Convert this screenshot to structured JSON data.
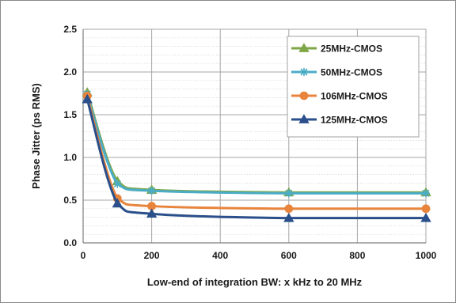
{
  "chart_data": {
    "type": "line",
    "title": "",
    "xlabel": "Low-end of integration BW: x kHz to 20 MHz",
    "ylabel": "Phase Jitter (ps RMS)",
    "xlim": [
      0,
      1000
    ],
    "ylim": [
      0.0,
      2.5
    ],
    "x_ticks": [
      0,
      200,
      400,
      600,
      800,
      1000
    ],
    "y_ticks": [
      0.0,
      0.5,
      1.0,
      1.5,
      2.0,
      2.5
    ],
    "x_tick_labels": [
      "0",
      "200",
      "400",
      "600",
      "800",
      "1000"
    ],
    "y_tick_labels": [
      "0.0",
      "0.5",
      "1.0",
      "1.5",
      "2.0",
      "2.5"
    ],
    "grid": {
      "major_horizontal": true,
      "minor_horizontal": true,
      "vertical": true
    },
    "legend_position": "top-right",
    "x": [
      12,
      100,
      200,
      600,
      1000
    ],
    "series": [
      {
        "name": "25MHz-CMOS",
        "color": "#7fa646",
        "marker": "triangle",
        "values": [
          1.76,
          0.72,
          0.62,
          0.59,
          0.59
        ]
      },
      {
        "name": "50MHz-CMOS",
        "color": "#4bacc6",
        "marker": "star",
        "values": [
          1.74,
          0.69,
          0.61,
          0.58,
          0.58
        ]
      },
      {
        "name": "106MHz-CMOS",
        "color": "#e8843c",
        "marker": "circle",
        "values": [
          1.72,
          0.52,
          0.43,
          0.4,
          0.4
        ]
      },
      {
        "name": "125MHz-CMOS",
        "color": "#2a4f8a",
        "marker": "triangle",
        "values": [
          1.68,
          0.46,
          0.34,
          0.29,
          0.29
        ]
      }
    ]
  }
}
